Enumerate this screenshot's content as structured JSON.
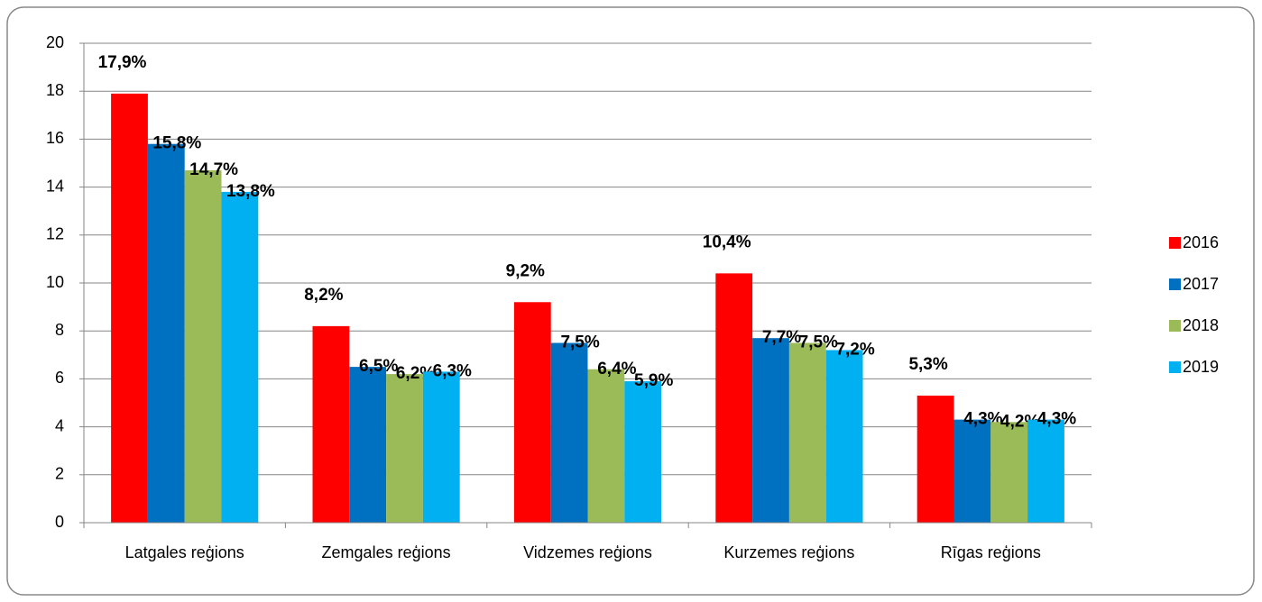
{
  "chart_data": {
    "type": "bar",
    "categories": [
      "Latgales reģions",
      "Zemgales reģions",
      "Vidzemes reģions",
      "Kurzemes reģions",
      "Rīgas reģions"
    ],
    "series": [
      {
        "name": "2016",
        "color": "#ff0000",
        "values": [
          17.9,
          8.2,
          9.2,
          10.4,
          5.3
        ],
        "value_labels": [
          "17,9%",
          "8,2%",
          "9,2%",
          "10,4%",
          "5,3%"
        ]
      },
      {
        "name": "2017",
        "color": "#0070c0",
        "values": [
          15.8,
          6.5,
          7.5,
          7.7,
          4.3
        ],
        "value_labels": [
          "15,8%",
          "6,5%",
          "7,5%",
          "7,7%",
          "4,3%"
        ]
      },
      {
        "name": "2018",
        "color": "#9bbb59",
        "values": [
          14.7,
          6.2,
          6.4,
          7.5,
          4.2
        ],
        "value_labels": [
          "14,7%",
          "6,2%",
          "6,4%",
          "7,5%",
          "4,2%"
        ]
      },
      {
        "name": "2019",
        "color": "#00b0f0",
        "values": [
          13.8,
          6.3,
          5.9,
          7.2,
          4.3
        ],
        "value_labels": [
          "13,8%",
          "6,3%",
          "5,9%",
          "7,2%",
          "4,3%"
        ]
      }
    ],
    "ylim": [
      0,
      20
    ],
    "yticks": [
      0,
      2,
      4,
      6,
      8,
      10,
      12,
      14,
      16,
      18,
      20
    ],
    "grid": true,
    "legend": "right"
  }
}
